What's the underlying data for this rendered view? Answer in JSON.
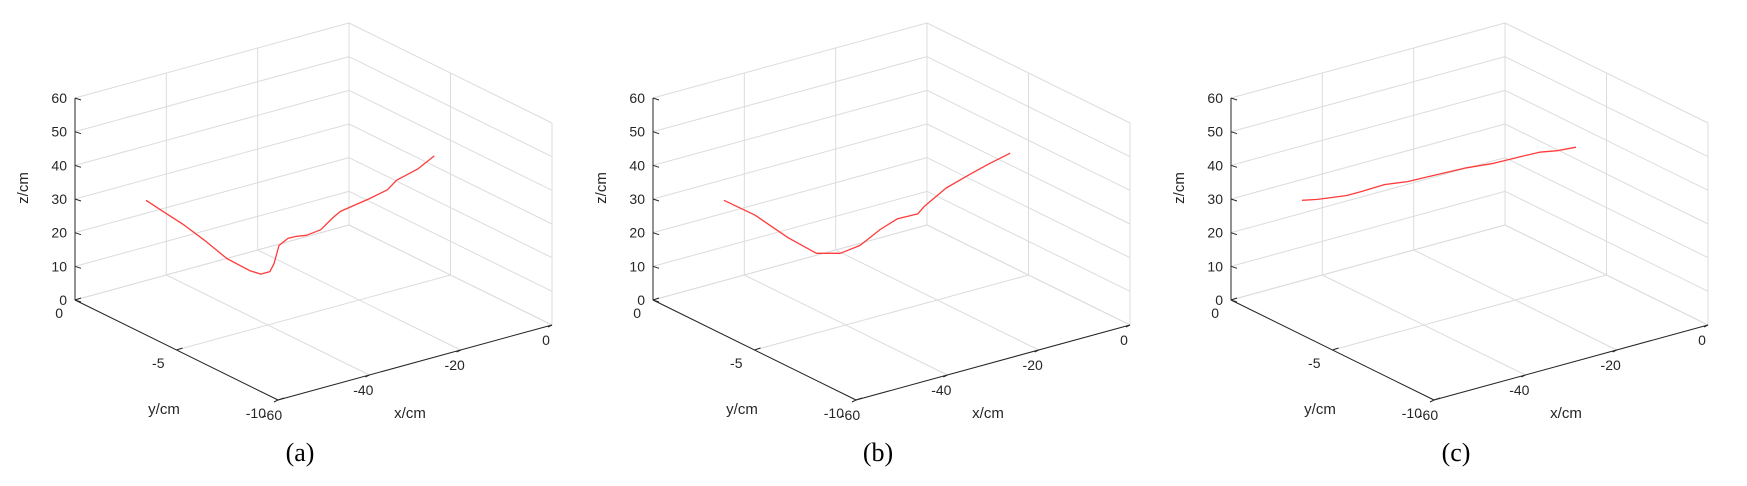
{
  "chart_data": [
    {
      "type": "line",
      "panel_label": "(a)",
      "xlabel": "x/cm",
      "ylabel": "y/cm",
      "zlabel": "z/cm",
      "xlim": [
        -60,
        0
      ],
      "ylim": [
        -10,
        0
      ],
      "zlim": [
        0,
        60
      ],
      "xticks": [
        "-60",
        "-40",
        "-20",
        "0"
      ],
      "yticks": [
        "-10",
        "-5",
        "0"
      ],
      "zticks": [
        "0",
        "10",
        "20",
        "30",
        "40",
        "50",
        "60"
      ],
      "grid": true,
      "line_color": "#ff3b3b",
      "series": [
        {
          "x": [
            -60,
            -56.1,
            -52.1,
            -48.1,
            -44.1,
            -40.0,
            -38.0,
            -36.0,
            -35.1,
            -34.0,
            -32.0,
            -30.2,
            -28.0,
            -24.9,
            -22.6,
            -21.0,
            -14.8,
            -10.7,
            -8.7,
            -4.1,
            0
          ],
          "y": [
            -3.5,
            -3.6,
            -3.6,
            -3.7,
            -3.9,
            -4.1,
            -4.2,
            -4.2,
            -4.2,
            -4.2,
            -4.2,
            -4.2,
            -4.2,
            -4.2,
            -4.3,
            -4.3,
            -4.3,
            -4.3,
            -4.3,
            -4.3,
            -4.2
          ],
          "z": [
            40.0,
            35.0,
            30.0,
            24.3,
            18.0,
            13.5,
            12.0,
            12.0,
            14.0,
            19.0,
            20.4,
            20.3,
            19.8,
            20.3,
            23.4,
            24.6,
            26.0,
            27.2,
            29.3,
            30.9,
            33.0
          ]
        }
      ]
    },
    {
      "type": "line",
      "panel_label": "(b)",
      "xlabel": "x/cm",
      "ylabel": "y/cm",
      "zlabel": "z/cm",
      "xlim": [
        -60,
        0
      ],
      "ylim": [
        -10,
        0
      ],
      "zlim": [
        0,
        60
      ],
      "xticks": [
        "-60",
        "-40",
        "-20",
        "0"
      ],
      "yticks": [
        "-10",
        "-5",
        "0"
      ],
      "zticks": [
        "0",
        "10",
        "20",
        "30",
        "40",
        "50",
        "60"
      ],
      "grid": true,
      "line_color": "#ff3b3b",
      "series": [
        {
          "x": [
            -60,
            -54.1,
            -48.2,
            -42.9,
            -38.1,
            -34.2,
            -29.8,
            -26.0,
            -21.6,
            -19.7,
            -14.9,
            -10.0,
            -5.2,
            0
          ],
          "y": [
            -3.5,
            -3.7,
            -4.0,
            -4.2,
            -4.3,
            -4.4,
            -4.4,
            -4.4,
            -4.4,
            -4.3,
            -4.3,
            -4.3,
            -4.2,
            -4.1
          ],
          "z": [
            40.0,
            34.0,
            26.0,
            20.0,
            18.5,
            19.7,
            22.8,
            24.6,
            24.4,
            25.6,
            29.3,
            31.3,
            32.5,
            33.5
          ]
        }
      ]
    },
    {
      "type": "line",
      "panel_label": "(c)",
      "xlabel": "x/cm",
      "ylabel": "y/cm",
      "zlabel": "z/cm",
      "xlim": [
        -60,
        0
      ],
      "ylim": [
        -10,
        0
      ],
      "zlim": [
        0,
        60
      ],
      "xticks": [
        "-60",
        "-40",
        "-20",
        "0"
      ],
      "yticks": [
        "-10",
        "-5",
        "0"
      ],
      "zticks": [
        "0",
        "10",
        "20",
        "30",
        "40",
        "50",
        "60"
      ],
      "grid": true,
      "line_color": "#ff3b3b",
      "series": [
        {
          "x": [
            -60,
            -56.6,
            -50.2,
            -46.9,
            -42.0,
            -36.9,
            -32.9,
            -24.0,
            -18.0,
            -11.9,
            -8.0,
            -4.1,
            0
          ],
          "y": [
            -3.5,
            -3.5,
            -3.5,
            -3.5,
            -3.5,
            -3.5,
            -3.5,
            -3.5,
            -3.5,
            -3.5,
            -3.5,
            -3.5,
            -3.5
          ],
          "z": [
            40.0,
            39.0,
            37.8,
            37.8,
            38.0,
            37.0,
            36.8,
            36.3,
            35.4,
            35.2,
            35.0,
            34.0,
            33.5
          ]
        }
      ]
    }
  ]
}
